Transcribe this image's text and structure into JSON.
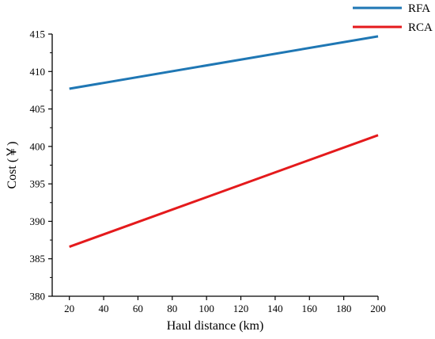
{
  "chart_data": {
    "type": "line",
    "title": "",
    "xlabel": "Haul distance (km)",
    "ylabel": "Cost (￥)",
    "x": [
      20,
      200
    ],
    "xticks": [
      20,
      40,
      60,
      80,
      100,
      120,
      140,
      160,
      180,
      200
    ],
    "yticks": [
      380,
      385,
      390,
      395,
      400,
      405,
      410,
      415
    ],
    "xlim": [
      20,
      200
    ],
    "ylim": [
      380,
      415
    ],
    "grid": false,
    "legend": "top-right",
    "series": [
      {
        "name": "RFA",
        "color": "#1f77b4",
        "x": [
          20,
          200
        ],
        "values": [
          407.7,
          414.7
        ]
      },
      {
        "name": "RCA",
        "color": "#e41a1c",
        "x": [
          20,
          200
        ],
        "values": [
          386.6,
          401.5
        ]
      }
    ]
  }
}
